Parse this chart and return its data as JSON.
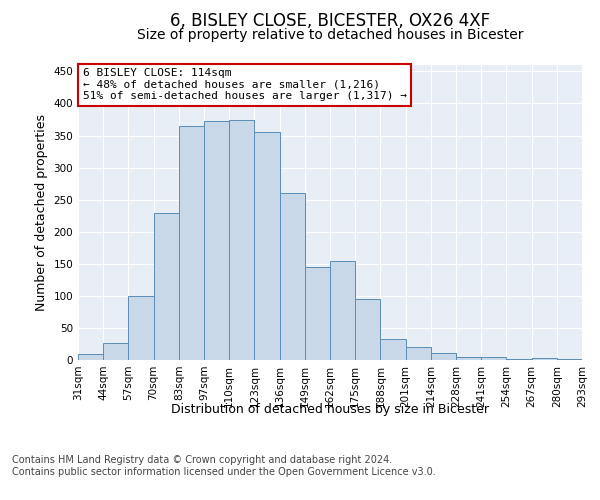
{
  "title": "6, BISLEY CLOSE, BICESTER, OX26 4XF",
  "subtitle": "Size of property relative to detached houses in Bicester",
  "xlabel": "Distribution of detached houses by size in Bicester",
  "ylabel": "Number of detached properties",
  "categories": [
    "31sqm",
    "44sqm",
    "57sqm",
    "70sqm",
    "83sqm",
    "97sqm",
    "110sqm",
    "123sqm",
    "136sqm",
    "149sqm",
    "162sqm",
    "175sqm",
    "188sqm",
    "201sqm",
    "214sqm",
    "228sqm",
    "241sqm",
    "254sqm",
    "267sqm",
    "280sqm",
    "293sqm"
  ],
  "bar_heights": [
    10,
    26,
    100,
    230,
    365,
    373,
    375,
    355,
    260,
    145,
    155,
    95,
    32,
    20,
    11,
    5,
    5,
    2,
    3,
    2
  ],
  "bar_color": "#c8d8e8",
  "bar_edge_color": "#5b8db8",
  "background_color": "#e8eef6",
  "grid_color": "#ffffff",
  "annotation_line1": "6 BISLEY CLOSE: 114sqm",
  "annotation_line2": "← 48% of detached houses are smaller (1,216)",
  "annotation_line3": "51% of semi-detached houses are larger (1,317) →",
  "annotation_box_color": "#ffffff",
  "annotation_border_color": "#cc0000",
  "ylim": [
    0,
    460
  ],
  "yticks": [
    0,
    50,
    100,
    150,
    200,
    250,
    300,
    350,
    400,
    450
  ],
  "footer_text": "Contains HM Land Registry data © Crown copyright and database right 2024.\nContains public sector information licensed under the Open Government Licence v3.0.",
  "title_fontsize": 12,
  "subtitle_fontsize": 10,
  "xlabel_fontsize": 9,
  "ylabel_fontsize": 9,
  "tick_fontsize": 7.5,
  "annotation_fontsize": 8,
  "footer_fontsize": 7
}
